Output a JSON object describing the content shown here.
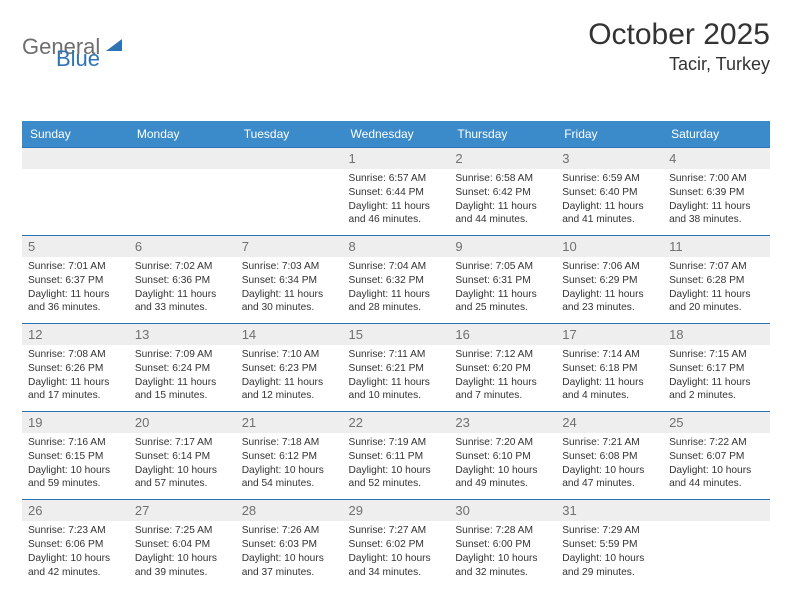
{
  "logo": {
    "general": "General",
    "blue": "Blue"
  },
  "header": {
    "title": "October 2025",
    "location": "Tacir, Turkey"
  },
  "colors": {
    "header_bg": "#3b8bca",
    "header_text": "#ffffff",
    "border": "#2e74b5",
    "shaded_bg": "#eeeeee",
    "daynum": "#707070",
    "body_text": "#333333",
    "logo_gray": "#6e6e6e",
    "logo_blue": "#2e74b5"
  },
  "weekdays": [
    "Sunday",
    "Monday",
    "Tuesday",
    "Wednesday",
    "Thursday",
    "Friday",
    "Saturday"
  ],
  "weeks": [
    [
      null,
      null,
      null,
      {
        "n": "1",
        "sr": "6:57 AM",
        "ss": "6:44 PM",
        "dl": "11 hours and 46 minutes."
      },
      {
        "n": "2",
        "sr": "6:58 AM",
        "ss": "6:42 PM",
        "dl": "11 hours and 44 minutes."
      },
      {
        "n": "3",
        "sr": "6:59 AM",
        "ss": "6:40 PM",
        "dl": "11 hours and 41 minutes."
      },
      {
        "n": "4",
        "sr": "7:00 AM",
        "ss": "6:39 PM",
        "dl": "11 hours and 38 minutes."
      }
    ],
    [
      {
        "n": "5",
        "sr": "7:01 AM",
        "ss": "6:37 PM",
        "dl": "11 hours and 36 minutes."
      },
      {
        "n": "6",
        "sr": "7:02 AM",
        "ss": "6:36 PM",
        "dl": "11 hours and 33 minutes."
      },
      {
        "n": "7",
        "sr": "7:03 AM",
        "ss": "6:34 PM",
        "dl": "11 hours and 30 minutes."
      },
      {
        "n": "8",
        "sr": "7:04 AM",
        "ss": "6:32 PM",
        "dl": "11 hours and 28 minutes."
      },
      {
        "n": "9",
        "sr": "7:05 AM",
        "ss": "6:31 PM",
        "dl": "11 hours and 25 minutes."
      },
      {
        "n": "10",
        "sr": "7:06 AM",
        "ss": "6:29 PM",
        "dl": "11 hours and 23 minutes."
      },
      {
        "n": "11",
        "sr": "7:07 AM",
        "ss": "6:28 PM",
        "dl": "11 hours and 20 minutes."
      }
    ],
    [
      {
        "n": "12",
        "sr": "7:08 AM",
        "ss": "6:26 PM",
        "dl": "11 hours and 17 minutes."
      },
      {
        "n": "13",
        "sr": "7:09 AM",
        "ss": "6:24 PM",
        "dl": "11 hours and 15 minutes."
      },
      {
        "n": "14",
        "sr": "7:10 AM",
        "ss": "6:23 PM",
        "dl": "11 hours and 12 minutes."
      },
      {
        "n": "15",
        "sr": "7:11 AM",
        "ss": "6:21 PM",
        "dl": "11 hours and 10 minutes."
      },
      {
        "n": "16",
        "sr": "7:12 AM",
        "ss": "6:20 PM",
        "dl": "11 hours and 7 minutes."
      },
      {
        "n": "17",
        "sr": "7:14 AM",
        "ss": "6:18 PM",
        "dl": "11 hours and 4 minutes."
      },
      {
        "n": "18",
        "sr": "7:15 AM",
        "ss": "6:17 PM",
        "dl": "11 hours and 2 minutes."
      }
    ],
    [
      {
        "n": "19",
        "sr": "7:16 AM",
        "ss": "6:15 PM",
        "dl": "10 hours and 59 minutes."
      },
      {
        "n": "20",
        "sr": "7:17 AM",
        "ss": "6:14 PM",
        "dl": "10 hours and 57 minutes."
      },
      {
        "n": "21",
        "sr": "7:18 AM",
        "ss": "6:12 PM",
        "dl": "10 hours and 54 minutes."
      },
      {
        "n": "22",
        "sr": "7:19 AM",
        "ss": "6:11 PM",
        "dl": "10 hours and 52 minutes."
      },
      {
        "n": "23",
        "sr": "7:20 AM",
        "ss": "6:10 PM",
        "dl": "10 hours and 49 minutes."
      },
      {
        "n": "24",
        "sr": "7:21 AM",
        "ss": "6:08 PM",
        "dl": "10 hours and 47 minutes."
      },
      {
        "n": "25",
        "sr": "7:22 AM",
        "ss": "6:07 PM",
        "dl": "10 hours and 44 minutes."
      }
    ],
    [
      {
        "n": "26",
        "sr": "7:23 AM",
        "ss": "6:06 PM",
        "dl": "10 hours and 42 minutes."
      },
      {
        "n": "27",
        "sr": "7:25 AM",
        "ss": "6:04 PM",
        "dl": "10 hours and 39 minutes."
      },
      {
        "n": "28",
        "sr": "7:26 AM",
        "ss": "6:03 PM",
        "dl": "10 hours and 37 minutes."
      },
      {
        "n": "29",
        "sr": "7:27 AM",
        "ss": "6:02 PM",
        "dl": "10 hours and 34 minutes."
      },
      {
        "n": "30",
        "sr": "7:28 AM",
        "ss": "6:00 PM",
        "dl": "10 hours and 32 minutes."
      },
      {
        "n": "31",
        "sr": "7:29 AM",
        "ss": "5:59 PM",
        "dl": "10 hours and 29 minutes."
      },
      null
    ]
  ],
  "labels": {
    "sunrise": "Sunrise:",
    "sunset": "Sunset:",
    "daylight": "Daylight:"
  }
}
